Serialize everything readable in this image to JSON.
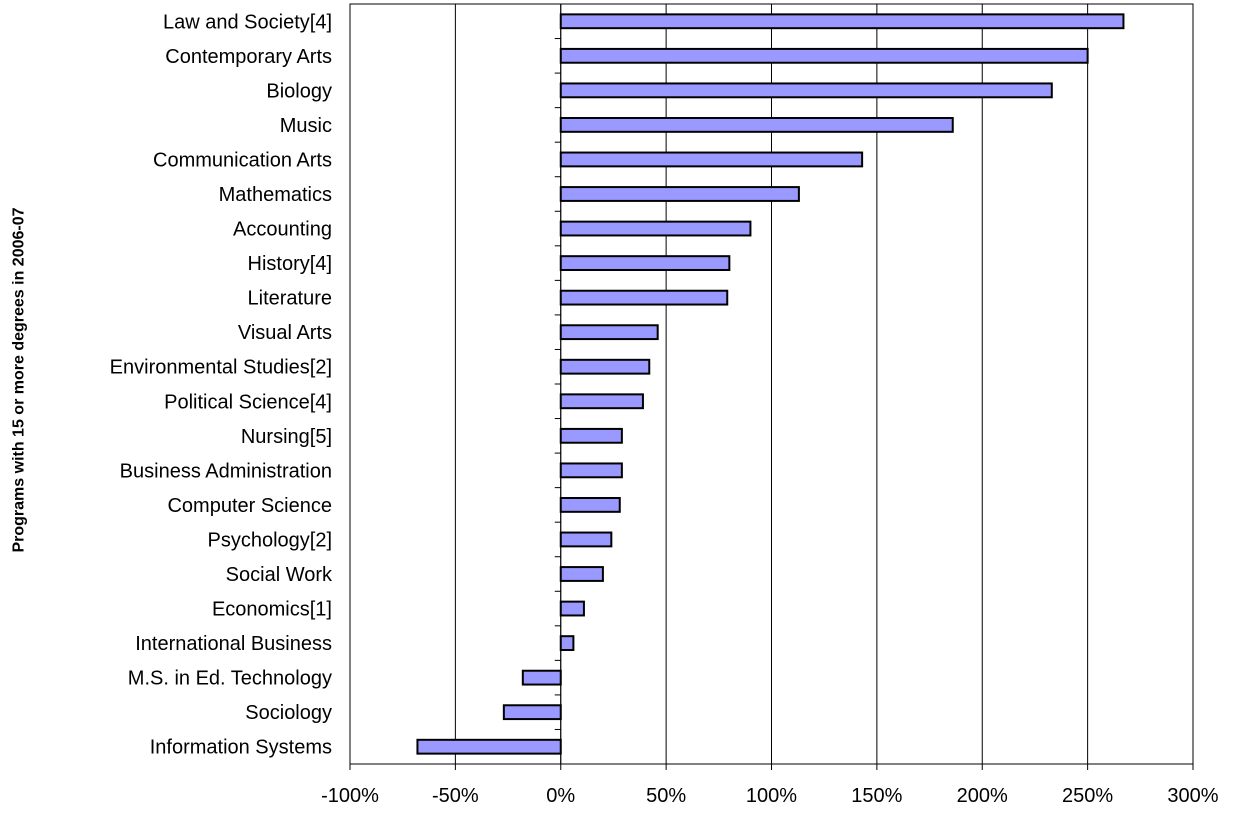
{
  "chart_data": {
    "type": "bar",
    "orientation": "horizontal",
    "title": "",
    "xlabel": "",
    "ylabel": "Programs with 15 or more degrees in 2006-07",
    "xlim": [
      -1.0,
      3.0
    ],
    "x_ticks": [
      -1.0,
      -0.5,
      0.0,
      0.5,
      1.0,
      1.5,
      2.0,
      2.5,
      3.0
    ],
    "x_tick_labels": [
      "-100%",
      "-50%",
      "0%",
      "50%",
      "100%",
      "150%",
      "200%",
      "250%",
      "300%"
    ],
    "grid": "vertical major gridlines",
    "legend": "none",
    "bar_color": "#9999FF",
    "bar_edge_color": "#000000",
    "categories": [
      "Law and Society[4]",
      "Contemporary Arts",
      "Biology",
      "Music",
      "Communication Arts",
      "Mathematics",
      "Accounting",
      "History[4]",
      "Literature",
      "Visual Arts",
      "Environmental Studies[2]",
      "Political Science[4]",
      "Nursing[5]",
      "Business Administration",
      "Computer Science",
      "Psychology[2]",
      "Social Work",
      "Economics[1]",
      "International Business",
      "M.S. in Ed. Technology",
      "Sociology",
      "Information Systems"
    ],
    "values": [
      2.67,
      2.5,
      2.33,
      1.86,
      1.43,
      1.13,
      0.9,
      0.8,
      0.79,
      0.46,
      0.42,
      0.39,
      0.29,
      0.29,
      0.28,
      0.24,
      0.2,
      0.11,
      0.06,
      -0.18,
      -0.27,
      -0.68
    ]
  }
}
